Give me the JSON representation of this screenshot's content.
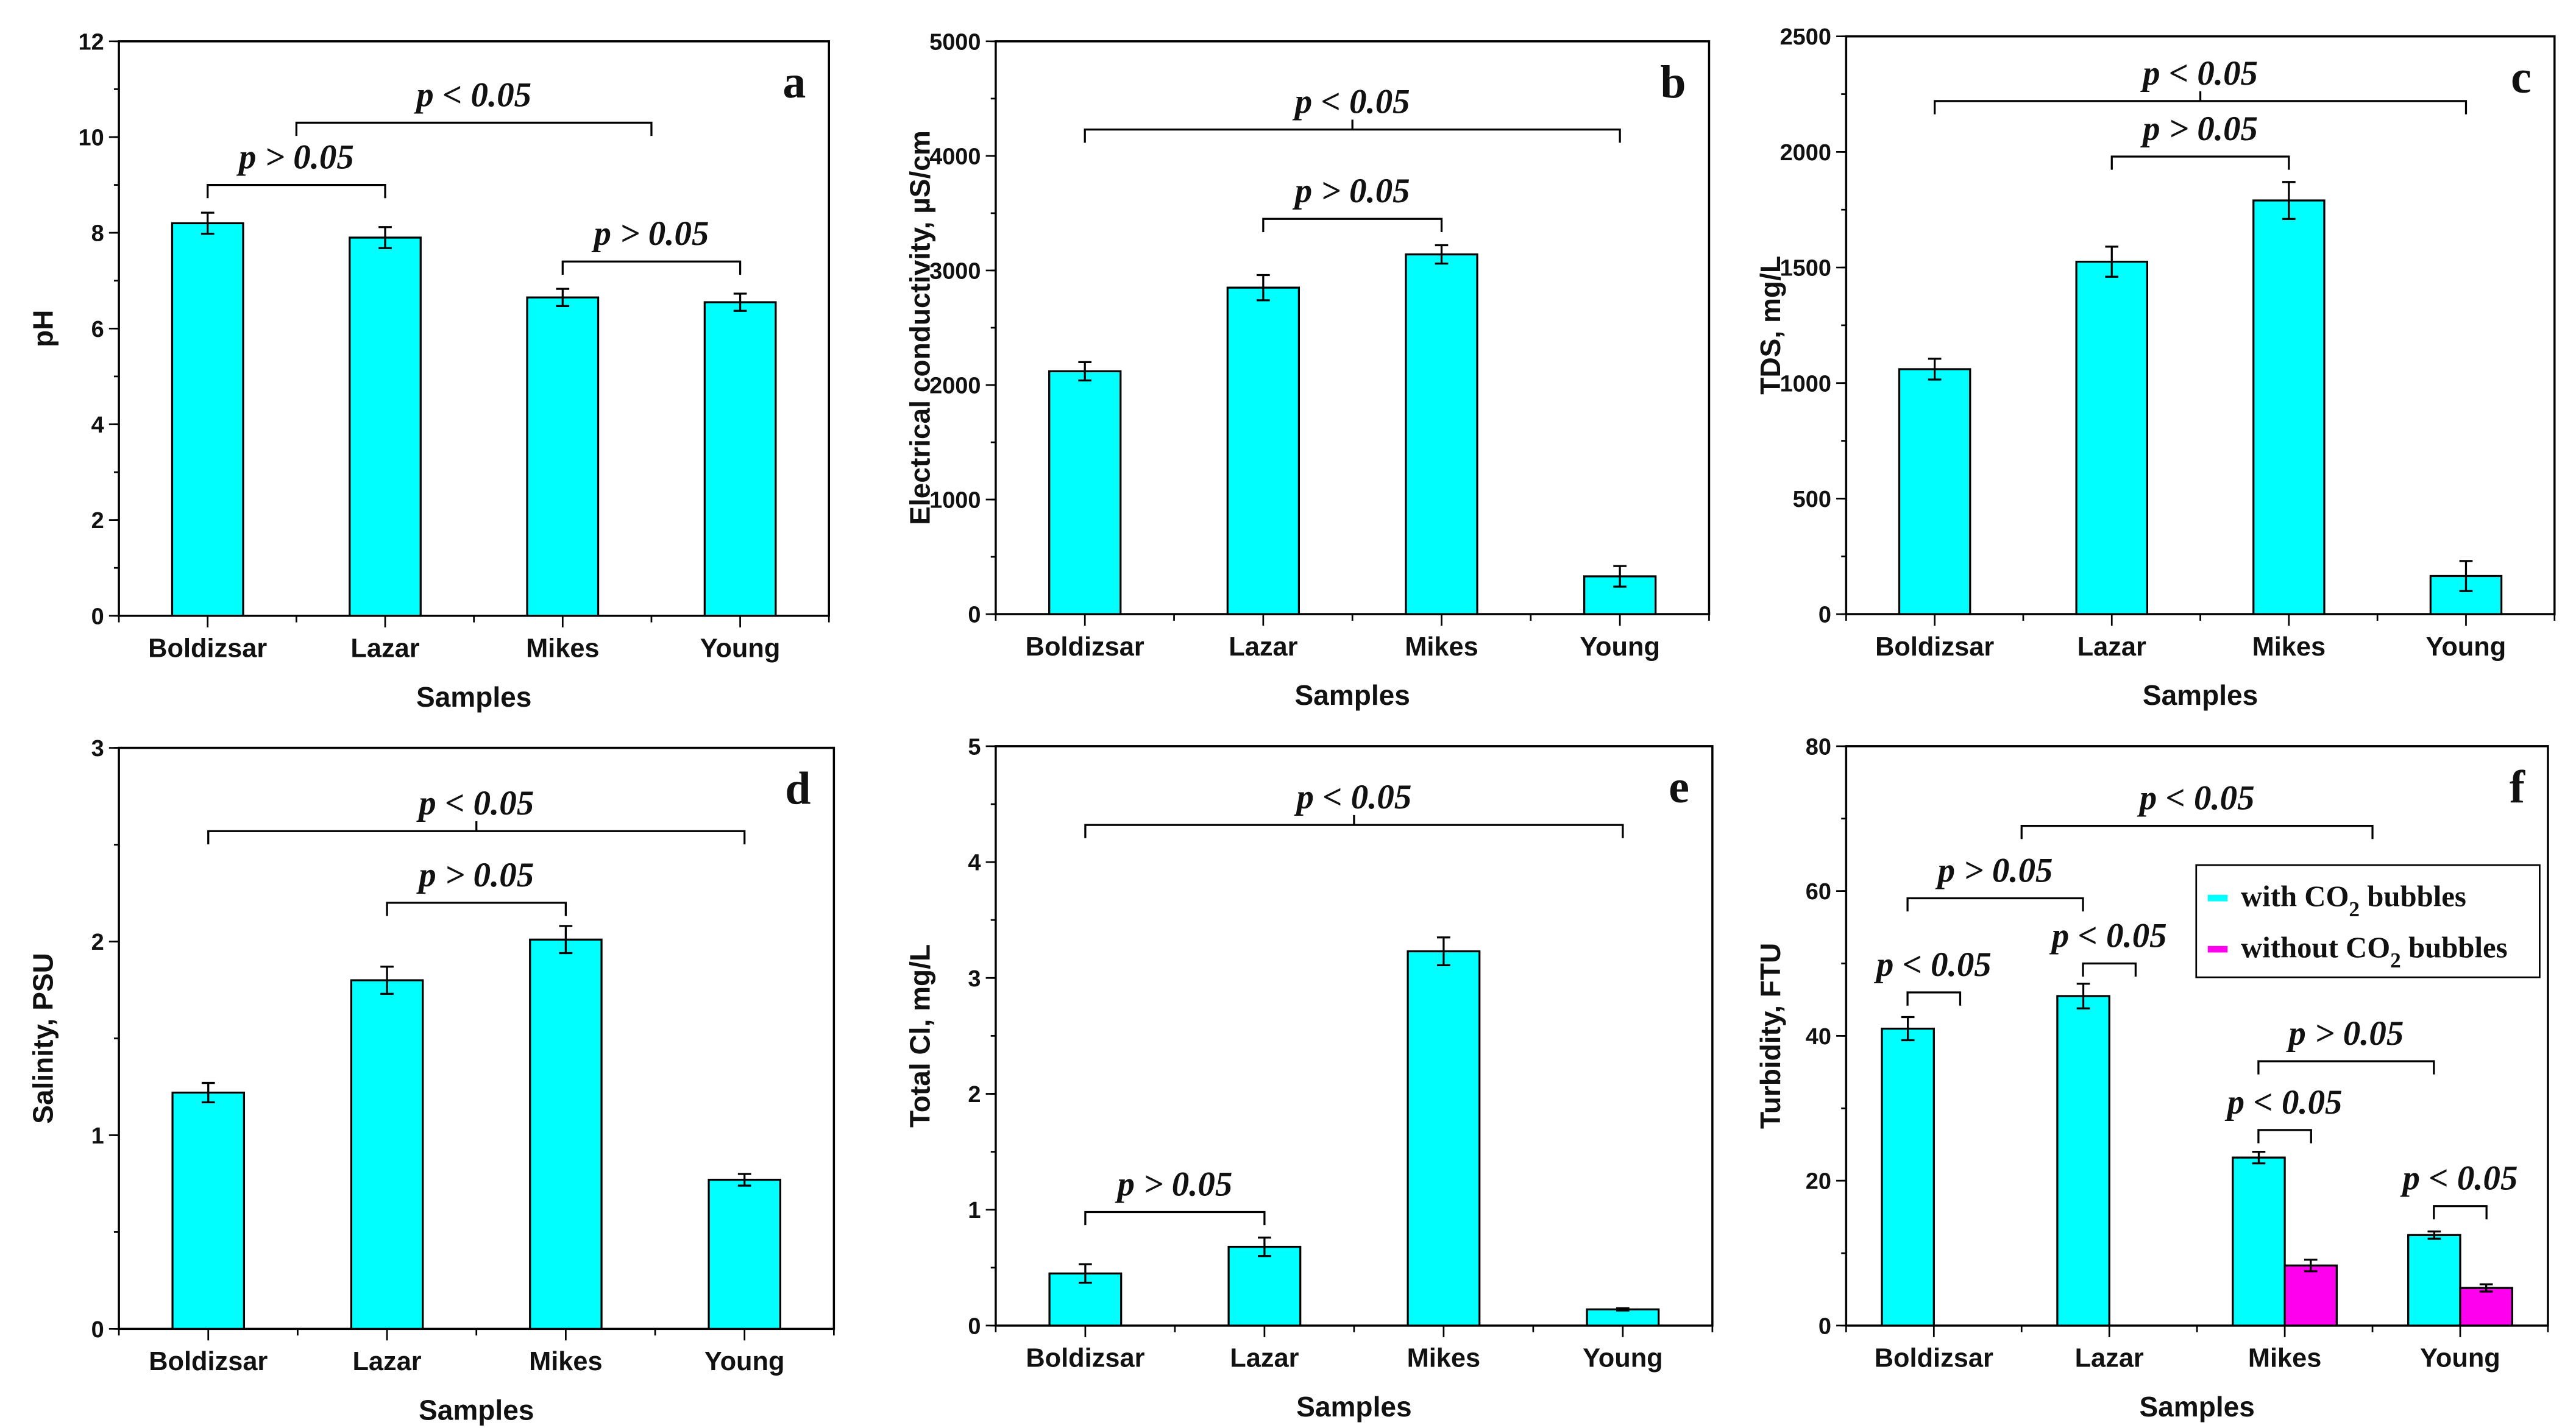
{
  "colors": {
    "with": "#00ffff",
    "without": "#ff00ee",
    "ink": "#000000"
  },
  "chart_data": [
    {
      "type": "bar",
      "letter": "a",
      "title": "",
      "xlabel": "Samples",
      "ylabel": "pH",
      "ylim": [
        0,
        12
      ],
      "yticks": [
        0,
        2,
        4,
        6,
        8,
        10,
        12
      ],
      "minor": 1,
      "categories": [
        "Boldizsar",
        "Lazar",
        "Mikes",
        "Young"
      ],
      "series": [
        {
          "name": "with CO2 bubbles",
          "values": [
            8.2,
            7.9,
            6.65,
            6.55
          ],
          "errors": [
            0.22,
            0.22,
            0.18,
            0.18
          ]
        }
      ],
      "brackets": [
        {
          "from": 0,
          "to": 1,
          "y": 9.0,
          "label": "p > 0.05"
        },
        {
          "from": 0.5,
          "to": 2.5,
          "y": 10.3,
          "label": "p < 0.05"
        },
        {
          "from": 2,
          "to": 3,
          "y": 7.4,
          "label": "p > 0.05"
        }
      ]
    },
    {
      "type": "bar",
      "letter": "b",
      "title": "",
      "xlabel": "Samples",
      "ylabel": "Electrical conductivity, µS/cm",
      "ylim": [
        0,
        5000
      ],
      "yticks": [
        0,
        1000,
        2000,
        3000,
        4000,
        5000
      ],
      "minor": 500,
      "categories": [
        "Boldizsar",
        "Lazar",
        "Mikes",
        "Young"
      ],
      "series": [
        {
          "name": "with CO2 bubbles",
          "values": [
            2120,
            2850,
            3140,
            330
          ],
          "errors": [
            80,
            110,
            80,
            90
          ]
        }
      ],
      "brackets": [
        {
          "from": 0,
          "to": 3,
          "y": 4230,
          "label": "p < 0.05",
          "mid": true
        },
        {
          "from": 1,
          "to": 2,
          "y": 3450,
          "label": "p > 0.05"
        }
      ]
    },
    {
      "type": "bar",
      "letter": "c",
      "title": "",
      "xlabel": "Samples",
      "ylabel": "TDS, mg/L",
      "ylim": [
        0,
        2500
      ],
      "yticks": [
        0,
        500,
        1000,
        1500,
        2000,
        2500
      ],
      "minor": 250,
      "categories": [
        "Boldizsar",
        "Lazar",
        "Mikes",
        "Young"
      ],
      "series": [
        {
          "name": "with CO2 bubbles",
          "values": [
            1060,
            1525,
            1790,
            165
          ],
          "errors": [
            45,
            65,
            80,
            65
          ]
        }
      ],
      "brackets": [
        {
          "from": 0,
          "to": 3,
          "y": 2220,
          "label": "p < 0.05",
          "mid": true
        },
        {
          "from": 1,
          "to": 2,
          "y": 1980,
          "label": "p > 0.05"
        }
      ]
    },
    {
      "type": "bar",
      "letter": "d",
      "title": "",
      "xlabel": "Samples",
      "ylabel": "Salinity, PSU",
      "ylim": [
        0,
        3
      ],
      "yticks": [
        0,
        1,
        2,
        3
      ],
      "minor": 0.5,
      "categories": [
        "Boldizsar",
        "Lazar",
        "Mikes",
        "Young"
      ],
      "series": [
        {
          "name": "with CO2 bubbles",
          "values": [
            1.22,
            1.8,
            2.01,
            0.77
          ],
          "errors": [
            0.05,
            0.07,
            0.07,
            0.03
          ]
        }
      ],
      "brackets": [
        {
          "from": 0,
          "to": 3,
          "y": 2.57,
          "label": "p < 0.05",
          "mid": true
        },
        {
          "from": 1,
          "to": 2,
          "y": 2.2,
          "label": "p > 0.05"
        }
      ]
    },
    {
      "type": "bar",
      "letter": "e",
      "title": "",
      "xlabel": "Samples",
      "ylabel": "Total Cl, mg/L",
      "ylim": [
        0,
        5
      ],
      "yticks": [
        0,
        1,
        2,
        3,
        4,
        5
      ],
      "minor": 0.5,
      "categories": [
        "Boldizsar",
        "Lazar",
        "Mikes",
        "Young"
      ],
      "series": [
        {
          "name": "with CO2 bubbles",
          "values": [
            0.45,
            0.68,
            3.23,
            0.14
          ],
          "errors": [
            0.08,
            0.08,
            0.12,
            0.01
          ]
        }
      ],
      "brackets": [
        {
          "from": 0,
          "to": 3,
          "y": 4.32,
          "label": "p < 0.05",
          "mid": true
        },
        {
          "from": 0,
          "to": 1,
          "y": 0.98,
          "label": "p > 0.05"
        }
      ]
    },
    {
      "type": "bar",
      "letter": "f",
      "title": "",
      "xlabel": "Samples",
      "ylabel": "Turbidity, FTU",
      "ylim": [
        0,
        80
      ],
      "yticks": [
        0,
        20,
        40,
        60,
        80
      ],
      "minor": 10,
      "categories": [
        "Boldizsar",
        "Lazar",
        "Mikes",
        "Young"
      ],
      "series": [
        {
          "name": "with CO2 bubbles",
          "values": [
            41,
            45.5,
            23.2,
            12.5
          ],
          "errors": [
            1.6,
            1.7,
            0.8,
            0.5
          ]
        },
        {
          "name": "without CO2 bubbles",
          "values": [
            null,
            null,
            8.3,
            5.2
          ],
          "errors": [
            null,
            null,
            0.8,
            0.5
          ]
        }
      ],
      "legend": "top-right",
      "brackets": [
        {
          "from": 0.5,
          "to": 2.5,
          "y": 69,
          "label": "p < 0.05"
        },
        {
          "from": -0.15,
          "to": 0.85,
          "y": 59,
          "label": "p > 0.05"
        },
        {
          "from": -0.15,
          "to": 0.15,
          "y": 46,
          "label": "p < 0.05"
        },
        {
          "from": 0.85,
          "to": 1.15,
          "y": 50,
          "label": "p < 0.05"
        },
        {
          "from": 1.85,
          "to": 2.85,
          "y": 36.5,
          "label": "p > 0.05"
        },
        {
          "from": 1.85,
          "to": 2.15,
          "y": 27,
          "label": "p < 0.05"
        },
        {
          "from": 2.85,
          "to": 3.15,
          "y": 16.5,
          "label": "p < 0.05"
        }
      ]
    }
  ]
}
